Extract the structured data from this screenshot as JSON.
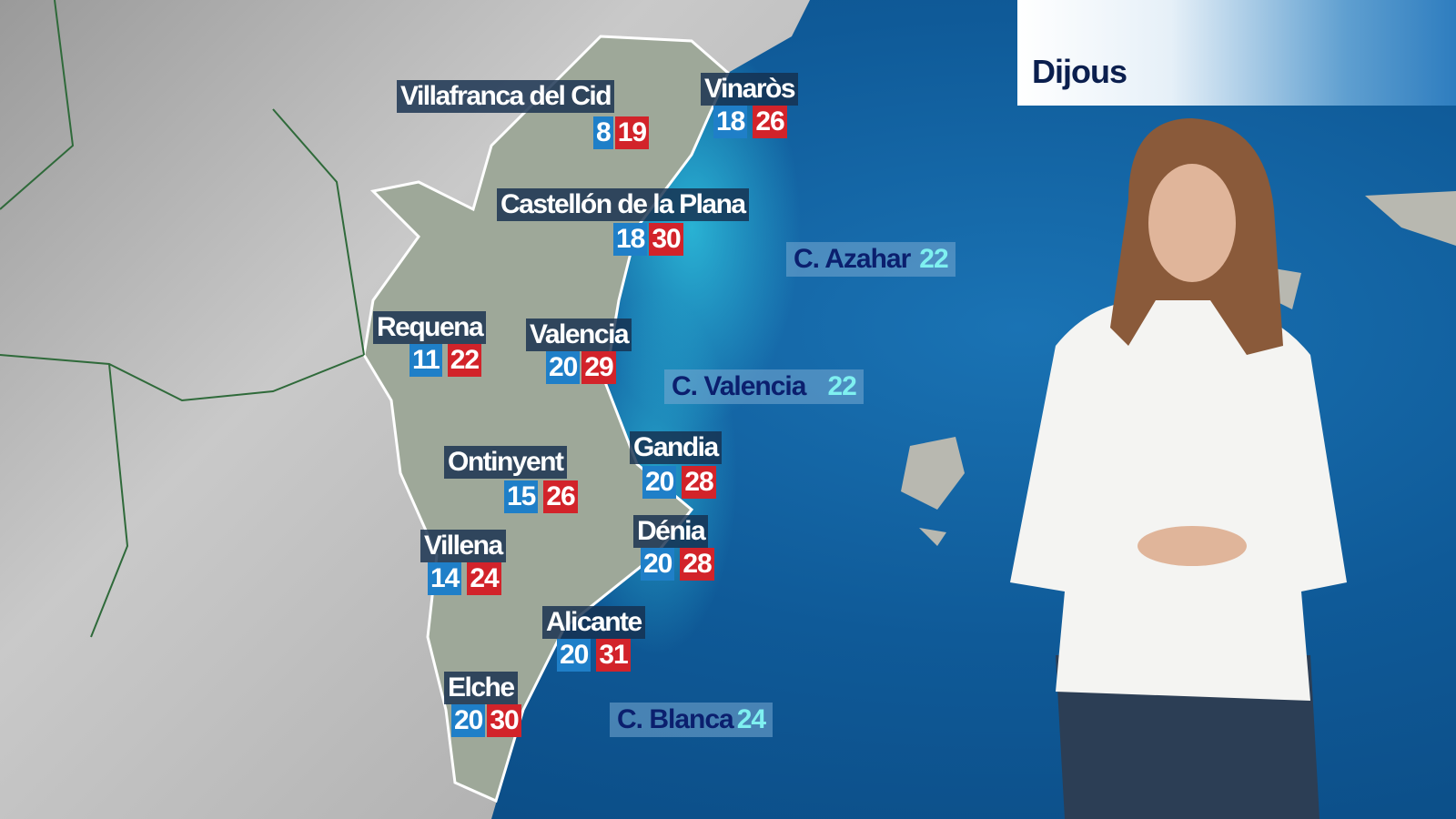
{
  "header": {
    "day": "Dijous"
  },
  "colors": {
    "min_temp": "#1f7fc8",
    "max_temp": "#d2232a",
    "label_bg": "#16304e",
    "sea": "#0f5a98",
    "sea_label_text": "#0b1f6e",
    "sea_temp_text": "#7ff0f0"
  },
  "cities": [
    {
      "name": "Villafranca del Cid",
      "min": "8",
      "max": "19"
    },
    {
      "name": "Vinaròs",
      "min": "18",
      "max": "26"
    },
    {
      "name": "Castellón de la Plana",
      "min": "18",
      "max": "30"
    },
    {
      "name": "Requena",
      "min": "11",
      "max": "22"
    },
    {
      "name": "Valencia",
      "min": "20",
      "max": "29"
    },
    {
      "name": "Ontinyent",
      "min": "15",
      "max": "26"
    },
    {
      "name": "Gandia",
      "min": "20",
      "max": "28"
    },
    {
      "name": "Villena",
      "min": "14",
      "max": "24"
    },
    {
      "name": "Dénia",
      "min": "20",
      "max": "28"
    },
    {
      "name": "Alicante",
      "min": "20",
      "max": "31"
    },
    {
      "name": "Elche",
      "min": "20",
      "max": "30"
    }
  ],
  "sea_zones": [
    {
      "name": "C. Azahar",
      "temp": "22"
    },
    {
      "name": "C. Valencia",
      "temp": "22"
    },
    {
      "name": "C. Blanca",
      "temp": "24"
    }
  ]
}
